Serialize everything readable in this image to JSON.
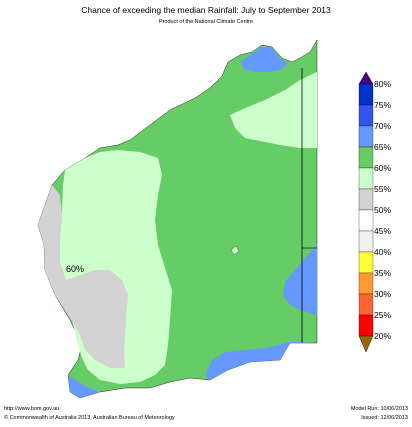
{
  "title": "Chance of exceeding the median Rainfall: July to September 2013",
  "subtitle": "Product of the National Climate Centre",
  "map_label": "60%",
  "legend": {
    "ticks": [
      "80%",
      "75%",
      "70%",
      "65%",
      "60%",
      "55%",
      "50%",
      "45%",
      "40%",
      "35%",
      "30%",
      "25%",
      "20%"
    ],
    "colors": [
      "#4b0082",
      "#0033cc",
      "#3355ee",
      "#6699ff",
      "#66cc66",
      "#ccffcc",
      "#d3d3d3",
      "#ffffff",
      "#f0f0f0",
      "#ffff33",
      "#ff9933",
      "#ff6633",
      "#ff0000",
      "#996600"
    ]
  },
  "colors": {
    "green": "#66cc66",
    "light_green": "#ccffcc",
    "grey": "#d3d3d3",
    "blue": "#6699ff"
  },
  "footer": {
    "url": "http://www.bom.gov.au",
    "copyright": "©  Commonwealth of Australia 2013, Australian Bureau of Meteorology",
    "model_run": "Model Run: 10/06/2013",
    "issued": "Issued: 12/06/2013"
  }
}
